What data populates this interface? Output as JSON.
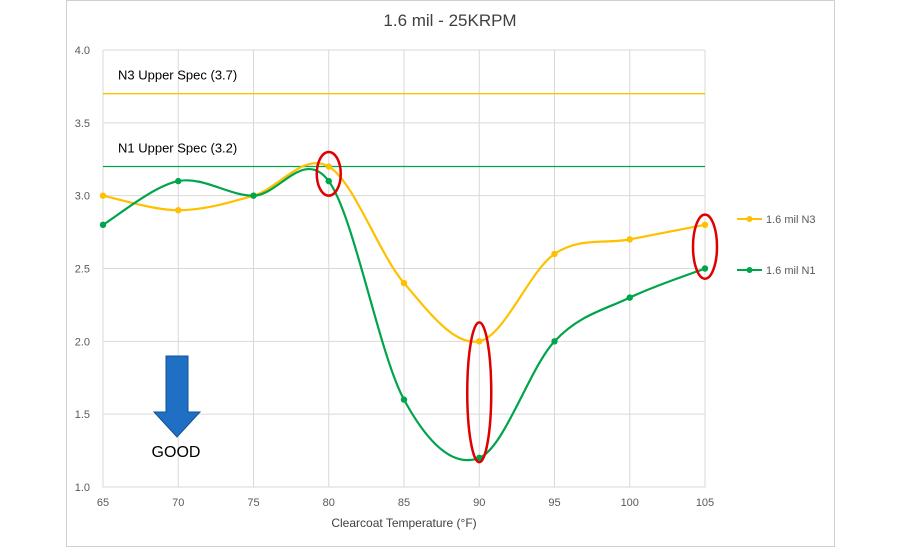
{
  "chart_data": {
    "type": "line",
    "title": "1.6 mil - 25KRPM",
    "xlabel": "Clearcoat Temperature  (°F)",
    "ylabel": "",
    "x": [
      65,
      70,
      75,
      80,
      85,
      90,
      95,
      100,
      105
    ],
    "xlim": [
      65,
      105
    ],
    "ylim": [
      1.0,
      4.0
    ],
    "yticks": [
      "1.0",
      "1.5",
      "2.0",
      "2.5",
      "3.0",
      "3.5",
      "4.0"
    ],
    "xticks": [
      "65",
      "70",
      "75",
      "80",
      "85",
      "90",
      "95",
      "100",
      "105"
    ],
    "grid": true,
    "legend_position": "right",
    "series": [
      {
        "name": "1.6 mil N3",
        "color": "#FFC000",
        "values": [
          3.0,
          2.9,
          3.0,
          3.2,
          2.4,
          2.0,
          2.6,
          2.7,
          2.8
        ]
      },
      {
        "name": "1.6 mil N1",
        "color": "#00A44A",
        "values": [
          2.8,
          3.1,
          3.0,
          3.1,
          1.6,
          1.2,
          2.0,
          2.3,
          2.5
        ]
      }
    ],
    "reference_lines": [
      {
        "label": "N3 Upper Spec (3.7)",
        "value": 3.7,
        "color": "#FFC000"
      },
      {
        "label": "N1 Upper Spec (3.2)",
        "value": 3.2,
        "color": "#00A44A"
      }
    ],
    "annotations": {
      "arrow_label": "GOOD",
      "arrow_color": "#1F6FC5",
      "highlight_color": "#E00000",
      "highlights": [
        {
          "x": 80,
          "y": 3.15,
          "ry": 0.15
        },
        {
          "x": 90,
          "y": 1.65,
          "ry": 0.48
        },
        {
          "x": 105,
          "y": 2.65,
          "ry": 0.22
        }
      ]
    }
  }
}
